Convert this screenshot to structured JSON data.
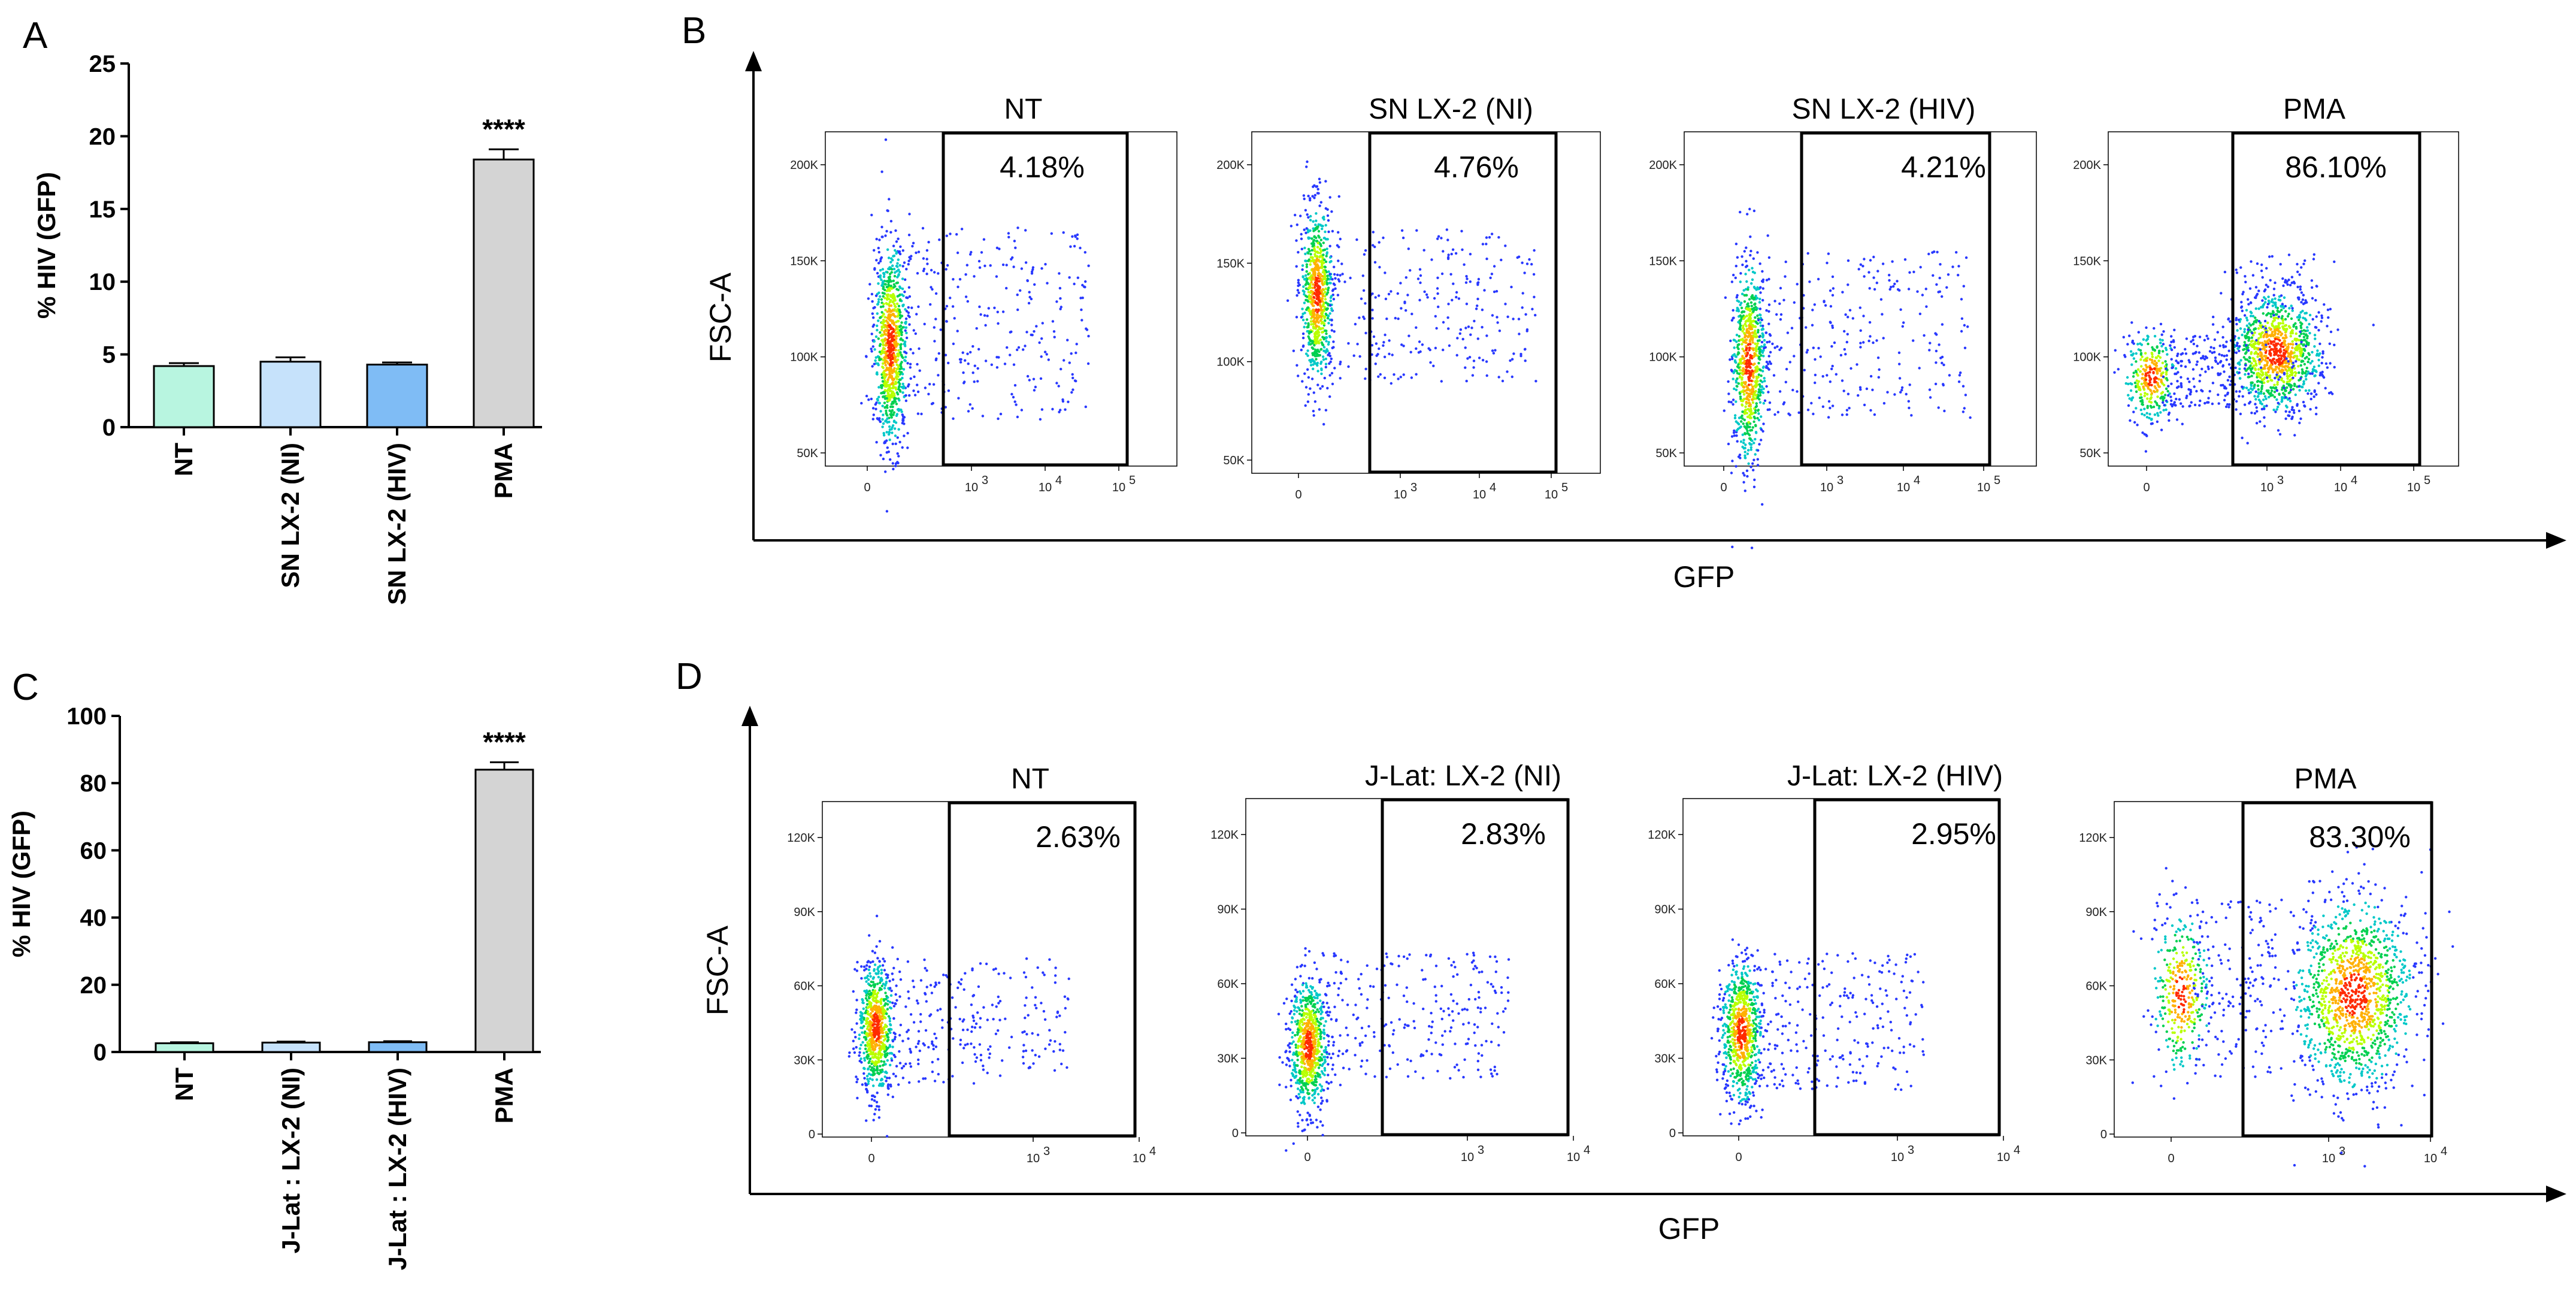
{
  "panel_labels": {
    "a": "A",
    "b": "B",
    "c": "C",
    "d": "D"
  },
  "chart_data": [
    {
      "panel": "A",
      "type": "bar",
      "ylabel": "% HIV (GFP)",
      "ylim": [
        0,
        25
      ],
      "yticks": [
        "0",
        "5",
        "10",
        "15",
        "20",
        "25"
      ],
      "categories": [
        "NT",
        "SN LX-2 (NI)",
        "SN LX-2 (HIV)",
        "PMA"
      ],
      "values": [
        4.2,
        4.5,
        4.3,
        18.4
      ],
      "errors": [
        0.2,
        0.3,
        0.15,
        0.7
      ],
      "colors": [
        "#b8f5e0",
        "#c6e2fb",
        "#7fbcf5",
        "#d4d4d4"
      ],
      "significance": [
        "",
        "",
        "",
        "****"
      ]
    },
    {
      "panel": "C",
      "type": "bar",
      "ylabel": "% HIV (GFP)",
      "ylim": [
        0,
        100
      ],
      "yticks": [
        "0",
        "20",
        "40",
        "60",
        "80",
        "100"
      ],
      "categories": [
        "NT",
        "J-Lat : LX-2 (NI)",
        "J-Lat : LX-2 (HIV)",
        "PMA"
      ],
      "values": [
        2.6,
        2.8,
        2.9,
        84.0
      ],
      "errors": [
        0.3,
        0.3,
        0.3,
        2.2
      ],
      "colors": [
        "#b8f5e0",
        "#c6e2fb",
        "#7fbcf5",
        "#d4d4d4"
      ],
      "significance": [
        "",
        "",
        "",
        "****"
      ]
    },
    {
      "panel": "B",
      "type": "scatter",
      "xlabel": "GFP",
      "ylabel": "FSC-A",
      "subplots": [
        {
          "title": "NT",
          "gate_pct": "4.18%",
          "yticks": [
            "50K",
            "100K",
            "150K",
            "200K"
          ],
          "xticks": [
            "0",
            "10",
            "10",
            "10"
          ],
          "xexp": [
            "",
            "3",
            "4",
            "5"
          ]
        },
        {
          "title": "SN LX-2 (NI)",
          "gate_pct": "4.76%",
          "yticks": [
            "50K",
            "100K",
            "150K",
            "200K"
          ],
          "xticks": [
            "0",
            "10",
            "10",
            "10"
          ],
          "xexp": [
            "",
            "3",
            "4",
            "5"
          ]
        },
        {
          "title": "SN LX-2 (HIV)",
          "gate_pct": "4.21%",
          "yticks": [
            "50K",
            "100K",
            "150K",
            "200K"
          ],
          "xticks": [
            "0",
            "10",
            "10",
            "10"
          ],
          "xexp": [
            "",
            "3",
            "4",
            "5"
          ]
        },
        {
          "title": "PMA",
          "gate_pct": "86.10%",
          "yticks": [
            "50K",
            "100K",
            "150K",
            "200K"
          ],
          "xticks": [
            "0",
            "10",
            "10",
            "10"
          ],
          "xexp": [
            "",
            "3",
            "4",
            "5"
          ]
        }
      ]
    },
    {
      "panel": "D",
      "type": "scatter",
      "xlabel": "GFP",
      "ylabel": "FSC-A",
      "subplots": [
        {
          "title": "NT",
          "gate_pct": "2.63%",
          "yticks": [
            "0",
            "30K",
            "60K",
            "90K",
            "120K"
          ],
          "xticks": [
            "0",
            "10",
            "10"
          ],
          "xexp": [
            "",
            "3",
            "4"
          ]
        },
        {
          "title": "J-Lat: LX-2 (NI)",
          "gate_pct": "2.83%",
          "yticks": [
            "0",
            "30K",
            "60K",
            "90K",
            "120K"
          ],
          "xticks": [
            "0",
            "10",
            "10"
          ],
          "xexp": [
            "",
            "3",
            "4"
          ]
        },
        {
          "title": "J-Lat: LX-2 (HIV)",
          "gate_pct": "2.95%",
          "yticks": [
            "0",
            "30K",
            "60K",
            "90K",
            "120K"
          ],
          "xticks": [
            "0",
            "10",
            "10"
          ],
          "xexp": [
            "",
            "3",
            "4"
          ]
        },
        {
          "title": "PMA",
          "gate_pct": "83.30%",
          "yticks": [
            "0",
            "30K",
            "60K",
            "90K",
            "120K"
          ],
          "xticks": [
            "0",
            "10",
            "10"
          ],
          "xexp": [
            "",
            "3",
            "4"
          ]
        }
      ]
    }
  ]
}
